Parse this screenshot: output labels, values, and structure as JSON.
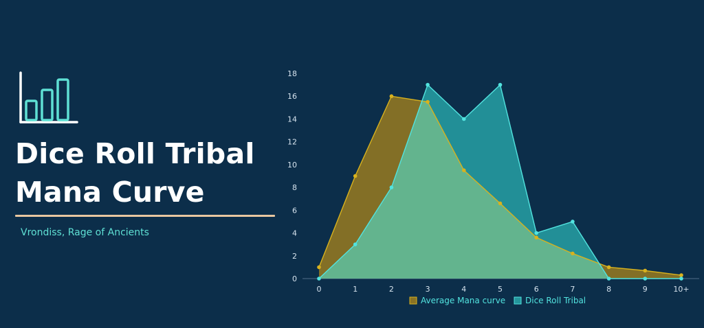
{
  "header": {
    "title_line1": "Dice Roll Tribal",
    "title_line2": "Mana Curve",
    "subtitle": "Vrondiss, Rage of Ancients"
  },
  "logo": {
    "icon": "bar-chart-icon"
  },
  "colors": {
    "background": "#0c2e4a",
    "average_fill": "#8a7324",
    "average_stroke": "#d8b21e",
    "tribal_fill": "#24959b",
    "tribal_stroke": "#52e3df",
    "overlap_fill": "#63b48e",
    "axis_text": "#d6e3ee"
  },
  "chart_data": {
    "type": "area",
    "categories": [
      "0",
      "1",
      "2",
      "3",
      "4",
      "5",
      "6",
      "7",
      "8",
      "9",
      "10+"
    ],
    "series": [
      {
        "name": "Average Mana curve",
        "values": [
          1,
          9,
          16,
          15.5,
          9.5,
          6.6,
          3.6,
          2.2,
          1,
          0.7,
          0.3
        ]
      },
      {
        "name": "Dice Roll Tribal",
        "values": [
          0,
          3,
          8,
          17,
          14,
          17,
          4,
          5,
          0,
          0,
          0
        ]
      }
    ],
    "ylim": [
      0,
      18
    ],
    "yticks": [
      0,
      2,
      4,
      6,
      8,
      10,
      12,
      14,
      16,
      18
    ],
    "grid": false,
    "legend": "bottom"
  }
}
